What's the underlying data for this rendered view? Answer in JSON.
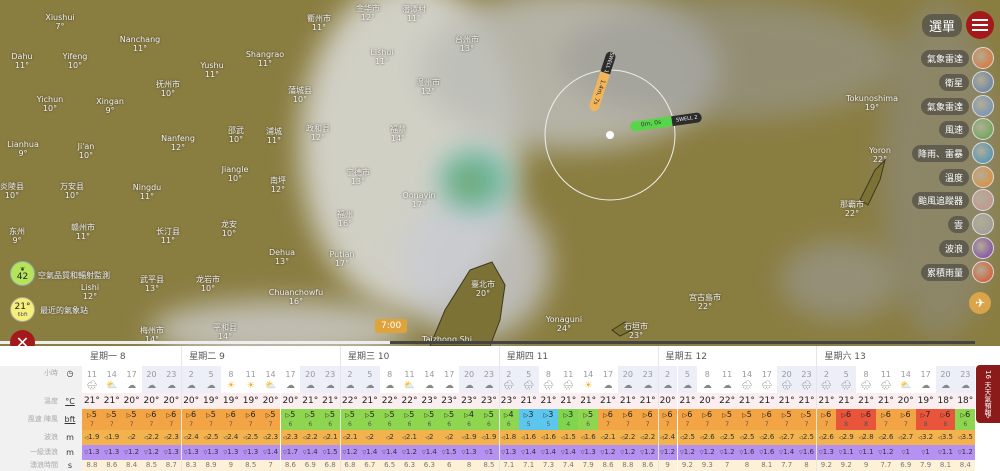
{
  "map": {
    "labels": [
      {
        "name": "Xiushui",
        "temp": "7°"
      },
      {
        "name": "Nanchang",
        "temp": "11°"
      },
      {
        "name": "Dahu",
        "temp": "11°"
      },
      {
        "name": "Yifeng",
        "temp": "10°"
      },
      {
        "name": "Shangrao",
        "temp": "11°"
      },
      {
        "name": "衢州市",
        "temp": "11°"
      },
      {
        "name": "Yushu",
        "temp": "11°"
      },
      {
        "name": "抚州市",
        "temp": "10°"
      },
      {
        "name": "Yichun",
        "temp": "10°"
      },
      {
        "name": "Xingan",
        "temp": "9°"
      },
      {
        "name": "蒲城县",
        "temp": "10°"
      },
      {
        "name": "Lianhua",
        "temp": "9°"
      },
      {
        "name": "Ji'an",
        "temp": "10°"
      },
      {
        "name": "Nanfeng",
        "temp": "12°"
      },
      {
        "name": "邵武",
        "temp": "10°"
      },
      {
        "name": "浦城",
        "temp": "11°"
      },
      {
        "name": "政和县",
        "temp": "12°"
      },
      {
        "name": "Jiangle",
        "temp": "10°"
      },
      {
        "name": "炎陵县",
        "temp": "10°"
      },
      {
        "name": "万安县",
        "temp": "10°"
      },
      {
        "name": "Ningdu",
        "temp": "11°"
      },
      {
        "name": "南坪",
        "temp": "12°"
      },
      {
        "name": "东州",
        "temp": "9°"
      },
      {
        "name": "赣州市",
        "temp": "11°"
      },
      {
        "name": "长汀县",
        "temp": "11°"
      },
      {
        "name": "龙安",
        "temp": "10°"
      },
      {
        "name": "Dehua",
        "temp": "13°"
      },
      {
        "name": "武平县",
        "temp": "13°"
      },
      {
        "name": "龙岩市",
        "temp": "10°"
      },
      {
        "name": "Chuanchowfu",
        "temp": "16°"
      },
      {
        "name": "Lishi",
        "temp": "12°"
      },
      {
        "name": "梅州市",
        "temp": "14°"
      },
      {
        "name": "平和县",
        "temp": "14°"
      },
      {
        "name": "金华市",
        "temp": "12°"
      },
      {
        "name": "潘潭村",
        "temp": "11°"
      },
      {
        "name": "Lishui",
        "temp": "11°"
      },
      {
        "name": "台州市",
        "temp": "13°"
      },
      {
        "name": "温州市",
        "temp": "12°"
      },
      {
        "name": "福鼎",
        "temp": "14°"
      },
      {
        "name": "宁德市",
        "temp": "13°"
      },
      {
        "name": "Oonayin",
        "temp": "17°"
      },
      {
        "name": "福州",
        "temp": "16°"
      },
      {
        "name": "Putian",
        "temp": "17°"
      },
      {
        "name": "臺北市",
        "temp": "20°"
      },
      {
        "name": "Taizhong Shi",
        "temp": ""
      },
      {
        "name": "Yonaguni",
        "temp": "24°"
      },
      {
        "name": "石垣市",
        "temp": "23°"
      },
      {
        "name": "宮古島市",
        "temp": "22°"
      },
      {
        "name": "那霸市",
        "temp": "22°"
      },
      {
        "name": "Yoron",
        "temp": "22°"
      },
      {
        "name": "Tokunoshima",
        "temp": "19°"
      }
    ],
    "swell": {
      "swell1_label": "SWELL 1",
      "swell1_value": "1.4m, 7s",
      "swell2_label": "SWELL 2",
      "swell2_value": "0m, 0s"
    },
    "timer": "7:00",
    "timeline_progress_percent": 40,
    "air_quality": {
      "value": "42",
      "label": "空氣品質和輻射監測",
      "color": "#b6e35a"
    },
    "nearest_station": {
      "value": "21°",
      "sub": "6bft",
      "label": "最近的氣象站",
      "color": "#f6ee7a"
    },
    "close_icon": "close-icon"
  },
  "menu": {
    "label": "選單",
    "items": [
      {
        "label": "氣象雷達",
        "color": "#e46a2e"
      },
      {
        "label": "衛星",
        "color": "#5a7bb0"
      },
      {
        "label": "氣象雷達",
        "color": "#6a8cc0"
      },
      {
        "label": "風速",
        "color": "#5ca64a"
      },
      {
        "label": "降雨、雷暴",
        "color": "#3a8ec0"
      },
      {
        "label": "溫度",
        "color": "#e8872a"
      },
      {
        "label": "颱風追蹤器",
        "color": "#c89090"
      },
      {
        "label": "雲",
        "color": "#9a9a9a"
      },
      {
        "label": "波浪",
        "color": "#7a3ab0"
      },
      {
        "label": "累積雨量",
        "color": "#e04a2a"
      }
    ],
    "plane_icon": "plane-icon"
  },
  "forecast": {
    "row_labels": [
      {
        "label": "小時",
        "unit": "clock-icon"
      },
      {
        "label": "溫度",
        "unit": "°C"
      },
      {
        "label": "風速 陣風",
        "unit": "bft"
      },
      {
        "label": "波浪",
        "unit": "m"
      },
      {
        "label": "一級湧浪",
        "unit": "m"
      },
      {
        "label": "湧浪時間",
        "unit": "s"
      }
    ],
    "days": [
      {
        "label": "星期一 8",
        "cols": 5
      },
      {
        "label": "星期二 9",
        "cols": 8
      },
      {
        "label": "星期三 10",
        "cols": 8
      },
      {
        "label": "星期四 11",
        "cols": 8
      },
      {
        "label": "星期五 12",
        "cols": 8
      },
      {
        "label": "星期六 13",
        "cols": 8
      }
    ],
    "hours": [
      11,
      14,
      17,
      20,
      23,
      2,
      5,
      8,
      11,
      14,
      17,
      20,
      23,
      2,
      5,
      8,
      11,
      14,
      17,
      20,
      23,
      2,
      5,
      8,
      11,
      14,
      17,
      20,
      23,
      2,
      5,
      8,
      11,
      14,
      17,
      20,
      23,
      2,
      5,
      8,
      11,
      14,
      17,
      20,
      23
    ],
    "icons": [
      "rain",
      "partly",
      "cloud",
      "night",
      "night",
      "night",
      "night",
      "sun",
      "sun",
      "partly",
      "cloud",
      "cloud",
      "night",
      "night",
      "cloud",
      "cloud",
      "partly",
      "cloud",
      "cloud",
      "cloud",
      "cloud",
      "rain",
      "rain",
      "rain",
      "rain",
      "sun",
      "night",
      "night",
      "night",
      "night",
      "cloud",
      "cloud",
      "cloud",
      "rain",
      "rain",
      "rain",
      "rain",
      "rain",
      "rain",
      "rain",
      "rain",
      "partly",
      "night",
      "cloud",
      "cloud"
    ],
    "temps": [
      "21°",
      "21°",
      "20°",
      "20°",
      "20°",
      "20°",
      "19°",
      "19°",
      "19°",
      "20°",
      "20°",
      "21°",
      "21°",
      "22°",
      "21°",
      "22°",
      "22°",
      "23°",
      "23°",
      "23°",
      "23°",
      "23°",
      "21°",
      "21°",
      "21°",
      "21°",
      "21°",
      "21°",
      "21°",
      "20°",
      "21°",
      "20°",
      "22°",
      "21°",
      "21°",
      "21°",
      "21°",
      "21°",
      "21°",
      "21°",
      "21°",
      "20°",
      "19°",
      "18°",
      "18°"
    ],
    "wind": [
      5,
      5,
      5,
      6,
      6,
      6,
      5,
      6,
      6,
      5,
      5,
      5,
      5,
      5,
      5,
      5,
      5,
      5,
      5,
      4,
      5,
      4,
      3,
      3,
      3,
      5,
      6,
      6,
      6,
      6,
      6,
      6,
      5,
      5,
      6,
      5,
      5,
      6,
      6,
      6,
      6,
      6,
      7,
      6,
      6
    ],
    "gust": [
      7,
      7,
      7,
      7,
      7,
      7,
      7,
      7,
      7,
      7,
      6,
      6,
      6,
      6,
      6,
      6,
      6,
      6,
      6,
      6,
      6,
      6,
      5,
      5,
      4,
      6,
      7,
      7,
      7,
      7,
      7,
      7,
      7,
      7,
      7,
      7,
      7,
      7,
      8,
      8,
      7,
      7,
      8,
      8,
      6
    ],
    "waves": [
      "1.9",
      "1.9",
      "2",
      "2.2",
      "2.3",
      "2.4",
      "2.5",
      "2.4",
      "2.5",
      "2.3",
      "2.3",
      "2.2",
      "2.1",
      "2.1",
      "2",
      "2",
      "2.1",
      "2",
      "2",
      "1.9",
      "1.9",
      "1.8",
      "1.6",
      "1.6",
      "1.5",
      "1.6",
      "2.1",
      "2.2",
      "2.2",
      "2.4",
      "2.5",
      "2.6",
      "2.5",
      "2.5",
      "2.6",
      "2.7",
      "2.5",
      "2.6",
      "2.9",
      "2.8",
      "2.6",
      "2.7",
      "3.2",
      "3.5",
      "3.5"
    ],
    "swell": [
      "1.3",
      "1.3",
      "1.2",
      "1.2",
      "1.3",
      "1.3",
      "1.3",
      "1.3",
      "1.3",
      "1.4",
      "1.7",
      "1.4",
      "1.5",
      "1.2",
      "1.4",
      "1.4",
      "1.2",
      "1.4",
      "1.5",
      "1.3",
      "1",
      "1.3",
      "1.4",
      "1.4",
      "1.4",
      "1.3",
      "1.2",
      "1.2",
      "1.2",
      "1.2",
      "1.2",
      "1.2",
      "1.2",
      "1.6",
      "1.6",
      "1.4",
      "1.6",
      "1.3",
      "1.1",
      "1.1",
      "1.2",
      "1",
      "1",
      "1.1",
      "1.2"
    ],
    "period": [
      "8.8",
      "8.6",
      "8.4",
      "8.5",
      "8.7",
      "8.3",
      "8.9",
      "9",
      "8.5",
      "7",
      "8.6",
      "6.9",
      "6.8",
      "6.8",
      "6.7",
      "6.5",
      "6.3",
      "6.3",
      "6",
      "8",
      "8.5",
      "7.1",
      "7.1",
      "7.3",
      "7.4",
      "7.9",
      "8.6",
      "8.8",
      "8.6",
      "9",
      "9.2",
      "9.3",
      "7",
      "8",
      "8.1",
      "7.7",
      "8",
      "9.2",
      "9.2",
      "9",
      "7.7",
      "6.9",
      "7.9",
      "8.1",
      "8.4"
    ],
    "gust_colors": {
      "4": "#7fd64e",
      "5": "#5cc6ee",
      "6": "#8ed650",
      "7": "#f3a445",
      "8": "#e8553a"
    },
    "waves_color": "#f2b24e",
    "swell_color": "#b591f2",
    "period_color": "#fdf2d8",
    "forecast_16_label": "16 天天氣預報"
  }
}
